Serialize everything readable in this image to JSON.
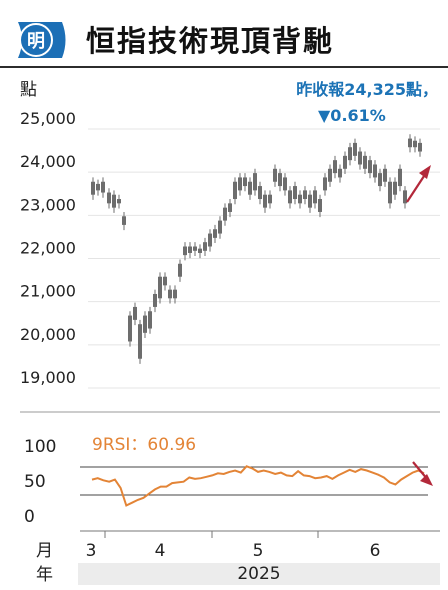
{
  "header": {
    "logo_text": "明",
    "title": "恒指技術現頂背馳"
  },
  "annotation": {
    "line1": "昨收報24,325點，",
    "line2": "▼0.61%"
  },
  "chart_data": {
    "type": "candlestick",
    "unit_label": "點",
    "ylim": [
      19000,
      25200
    ],
    "yticks": [
      25000,
      24000,
      23000,
      22000,
      21000,
      20000,
      19000
    ],
    "ytick_labels": [
      "25,000",
      "24,000",
      "23,000",
      "22,000",
      "21,000",
      "20,000",
      "19,000"
    ],
    "x_month_label": "月",
    "x_year_label": "年",
    "months": [
      "3",
      "4",
      "5",
      "6"
    ],
    "year": "2025",
    "last_close": 24325,
    "rsi": {
      "label": "9RSI：60.96",
      "yticks": [
        100,
        50,
        0
      ],
      "ylim": [
        0,
        100
      ],
      "reference_lines": [
        30,
        70
      ],
      "last_value": 60.96,
      "values": [
        52,
        54,
        51,
        49,
        52,
        40,
        15,
        19,
        23,
        26,
        32,
        38,
        42,
        42,
        47,
        48,
        49,
        55,
        53,
        54,
        56,
        58,
        61,
        60,
        63,
        65,
        62,
        71,
        68,
        63,
        65,
        63,
        60,
        62,
        58,
        57,
        64,
        58,
        57,
        54,
        55,
        57,
        53,
        58,
        62,
        66,
        63,
        67,
        65,
        62,
        59,
        55,
        48,
        45,
        52,
        57,
        62,
        65,
        61
      ]
    },
    "colors": {
      "candle": "#6d6d6d",
      "rsi_line": "#e38436",
      "annotation_text": "#1c73b6",
      "annotation_arrow": "#b3283a",
      "rsi_label": "#e38436"
    }
  }
}
